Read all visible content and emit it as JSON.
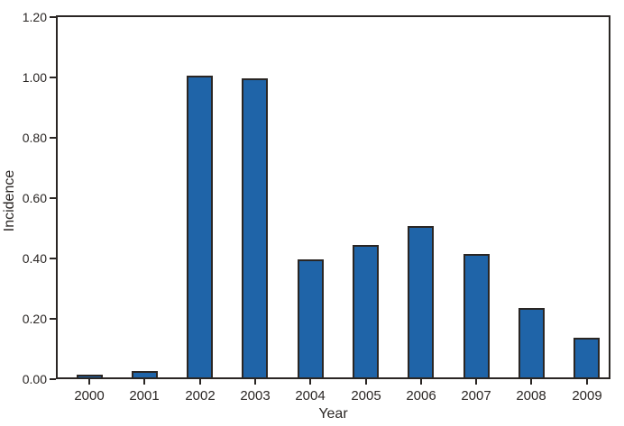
{
  "chart_data": {
    "type": "bar",
    "title": "",
    "xlabel": "Year",
    "ylabel": "Incidence",
    "categories": [
      "2000",
      "2001",
      "2002",
      "2003",
      "2004",
      "2005",
      "2006",
      "2007",
      "2008",
      "2009"
    ],
    "values": [
      0.01,
      0.02,
      1.0,
      0.99,
      0.39,
      0.44,
      0.5,
      0.41,
      0.23,
      0.13
    ],
    "ylim": [
      0,
      1.2
    ],
    "ytick_labels": [
      "0.00",
      "0.20",
      "0.40",
      "0.60",
      "0.80",
      "1.00",
      "1.20"
    ],
    "grid": false,
    "legend": "none",
    "bar_color": "#1f64a8",
    "edge_color": "#2a2624",
    "frame": "full-box"
  }
}
